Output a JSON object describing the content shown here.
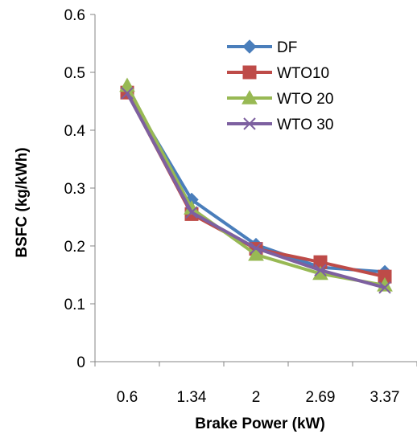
{
  "chart_data": {
    "type": "line",
    "title": "",
    "xlabel": "Brake Power (kW)",
    "ylabel": "BSFC (kg/kWh)",
    "categories": [
      "0.6",
      "1.34",
      "2",
      "2.69",
      "3.37"
    ],
    "ylim": [
      0,
      0.6
    ],
    "yticks": [
      "0",
      "0.1",
      "0.2",
      "0.3",
      "0.4",
      "0.5",
      "0.6"
    ],
    "grid": false,
    "legend_position": "top-right",
    "series": [
      {
        "name": "DF",
        "marker": "diamond",
        "color": "#4a7ebb",
        "values": [
          0.468,
          0.28,
          0.202,
          0.163,
          0.155
        ]
      },
      {
        "name": "WTO10",
        "marker": "square",
        "color": "#be4b48",
        "values": [
          0.465,
          0.255,
          0.195,
          0.172,
          0.147
        ]
      },
      {
        "name": "WTO 20",
        "marker": "triangle",
        "color": "#98b954",
        "values": [
          0.477,
          0.265,
          0.185,
          0.152,
          0.132
        ]
      },
      {
        "name": "WTO 30",
        "marker": "x",
        "color": "#7d60a0",
        "values": [
          0.464,
          0.258,
          0.196,
          0.158,
          0.128
        ]
      }
    ]
  }
}
